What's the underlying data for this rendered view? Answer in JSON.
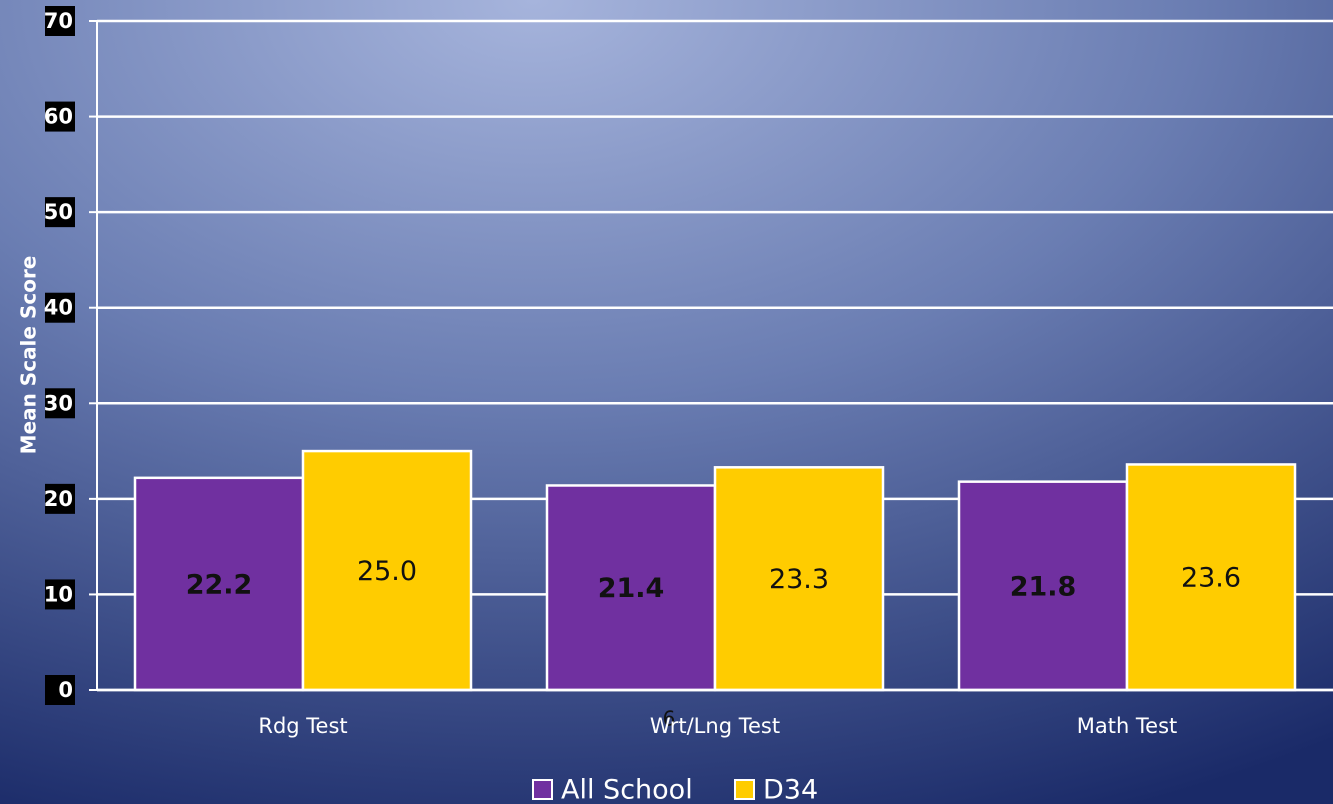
{
  "chart_data": {
    "type": "bar",
    "y_label": "Mean Scale Score",
    "categories": [
      "Rdg Test",
      "Wrt/Lng Test",
      "Math Test"
    ],
    "series": [
      {
        "name": "All School",
        "color": "#7030a0",
        "values": [
          22.2,
          21.4,
          21.8
        ],
        "value_labels": [
          "22.2",
          "21.4",
          "21.8"
        ]
      },
      {
        "name": "D34",
        "color": "#ffcc00",
        "values": [
          25.0,
          23.3,
          23.6
        ],
        "value_labels": [
          "25.0",
          "23.3",
          "23.6"
        ]
      }
    ],
    "ylim": [
      0,
      70
    ],
    "yticks": [
      0,
      10,
      20,
      30,
      40,
      50,
      60,
      70
    ],
    "grid": true,
    "legend": "bottom",
    "annotation": "6"
  }
}
